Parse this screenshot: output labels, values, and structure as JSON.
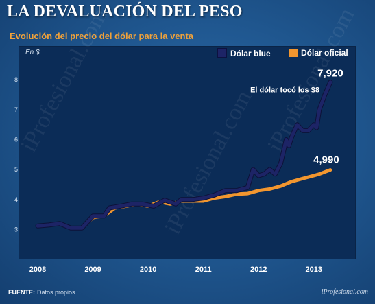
{
  "header": {
    "title": "LA DEVALUACIÓN DEL PESO",
    "subtitle": "Evolución del precio del dólar para la venta"
  },
  "footer": {
    "source_label": "FUENTE:",
    "source_text": "Datos propios",
    "brand": "iProfesional.com"
  },
  "watermark": "iProfesional.com",
  "colors": {
    "blue_series": "#1d2466",
    "orange_series": "#f2962f",
    "panel": "#0b2c57"
  },
  "chart_data": {
    "type": "line",
    "unit_label": "En $",
    "x_ticks": [
      "2008",
      "2009",
      "2010",
      "2011",
      "2012",
      "2013"
    ],
    "xlim": [
      2008.0,
      2013.4
    ],
    "ylim": [
      2.3,
      8.6
    ],
    "y_ticks": [
      3,
      4,
      5,
      6,
      7,
      8
    ],
    "grid": false,
    "legend_position": "top-right",
    "annotation": "El dólar tocó los $8",
    "series": [
      {
        "name": "Dólar blue",
        "color": "#1d2466",
        "end_label": "7,920",
        "x": [
          2008.0,
          2008.2,
          2008.4,
          2008.6,
          2008.8,
          2009.0,
          2009.2,
          2009.3,
          2009.5,
          2009.7,
          2009.9,
          2010.1,
          2010.3,
          2010.5,
          2010.6,
          2010.8,
          2011.0,
          2011.2,
          2011.4,
          2011.6,
          2011.8,
          2011.9,
          2012.0,
          2012.1,
          2012.2,
          2012.3,
          2012.4,
          2012.5,
          2012.55,
          2012.6,
          2012.7,
          2012.8,
          2012.9,
          2013.0,
          2013.05,
          2013.1,
          2013.2,
          2013.3
        ],
        "y": [
          3.12,
          3.15,
          3.2,
          3.05,
          3.05,
          3.45,
          3.45,
          3.72,
          3.78,
          3.85,
          3.85,
          3.78,
          3.98,
          3.85,
          4.0,
          4.0,
          4.05,
          4.15,
          4.3,
          4.3,
          4.4,
          5.0,
          4.8,
          4.85,
          5.0,
          4.85,
          5.2,
          6.0,
          5.8,
          6.1,
          6.5,
          6.3,
          6.3,
          6.5,
          6.4,
          7.0,
          7.5,
          7.92
        ]
      },
      {
        "name": "Dólar oficial",
        "color": "#f2962f",
        "end_label": "4,990",
        "x": [
          2008.0,
          2008.2,
          2008.4,
          2008.6,
          2008.8,
          2009.0,
          2009.2,
          2009.4,
          2009.6,
          2009.8,
          2010.0,
          2010.2,
          2010.4,
          2010.6,
          2010.8,
          2011.0,
          2011.2,
          2011.4,
          2011.6,
          2011.8,
          2012.0,
          2012.2,
          2012.4,
          2012.6,
          2012.8,
          2013.0,
          2013.1,
          2013.2,
          2013.3
        ],
        "y": [
          3.12,
          3.15,
          3.2,
          3.05,
          3.05,
          3.4,
          3.45,
          3.72,
          3.78,
          3.85,
          3.78,
          3.92,
          3.85,
          3.95,
          3.95,
          3.95,
          4.05,
          4.1,
          4.18,
          4.2,
          4.3,
          4.35,
          4.45,
          4.6,
          4.7,
          4.8,
          4.85,
          4.92,
          4.99
        ]
      }
    ]
  }
}
